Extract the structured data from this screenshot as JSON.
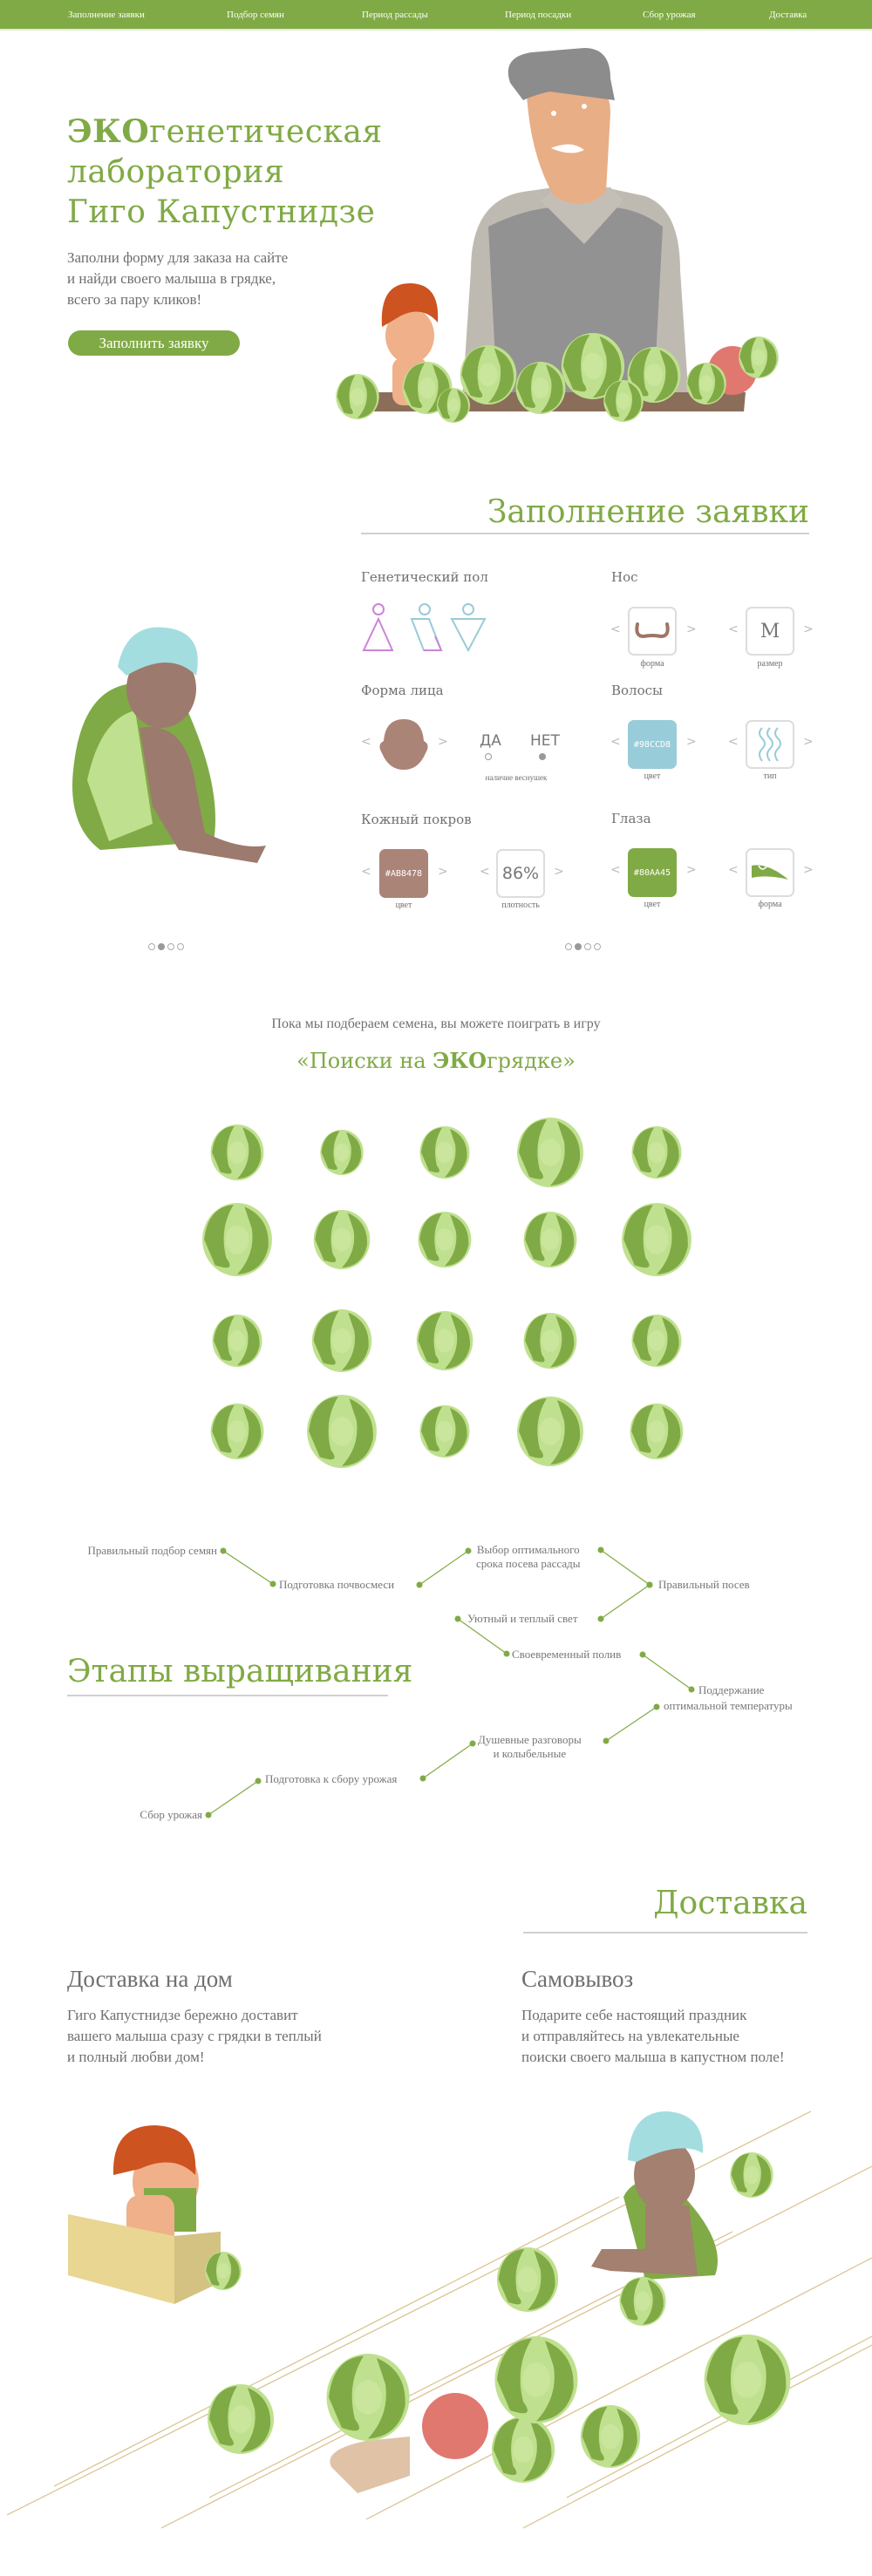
{
  "colors": {
    "brand": "#80AA45",
    "text": "#6f6f6f",
    "hair_color": "#98CCD8",
    "skin_color": "#AB8478",
    "eye_color": "#80AA45"
  },
  "nav": {
    "items": [
      {
        "label": "Заполнение заявки"
      },
      {
        "label": "Подбор семян"
      },
      {
        "label": "Период рассады"
      },
      {
        "label": "Период посадки"
      },
      {
        "label": "Сбор урожая"
      },
      {
        "label": "Доставка"
      }
    ]
  },
  "hero": {
    "title_bold": "ЭКО",
    "title_rest1": "генетическая",
    "title_line2": "лаборатория",
    "title_line3": "Гиго Капустнидзе",
    "subtitle": [
      "Заполни форму для заказа на сайте",
      "и найди своего малыша в грядке,",
      "всего за пару кликов!"
    ],
    "button": "Заполнить заявку"
  },
  "form": {
    "title": "Заполнение заявки",
    "gender": {
      "label": "Генетический пол",
      "icons": [
        "female-icon",
        "mixed-icon",
        "male-icon"
      ]
    },
    "nose": {
      "label": "Нос",
      "shape_caption": "форма",
      "size_value": "M",
      "size_caption": "размер"
    },
    "face": {
      "label": "Форма лица",
      "yes": "ДА",
      "no": "НЕТ",
      "freckles_caption": "наличие веснушек",
      "freckles_selected": "НЕТ"
    },
    "hair": {
      "label": "Волосы",
      "color_value": "#98CCD8",
      "color_caption": "цвет",
      "type_caption": "тип"
    },
    "skin": {
      "label": "Кожный покров",
      "color_value": "#AB8478",
      "color_caption": "цвет",
      "density_value": "86%",
      "density_caption": "плотность"
    },
    "eyes": {
      "label": "Глаза",
      "color_value": "#80AA45",
      "color_caption": "цвет",
      "shape_caption": "форма"
    },
    "carousel_left": {
      "pages": 4,
      "active": 2
    },
    "carousel_right": {
      "pages": 4,
      "active": 2
    }
  },
  "game": {
    "intro": "Пока мы подбераем семена, вы можете поиграть в игру",
    "title_open": "«Поиски на ",
    "title_bold": "ЭКО",
    "title_close": "грядке»",
    "rows": 4,
    "cols": 5
  },
  "stages": {
    "title": "Этапы выращивания",
    "items": [
      {
        "label": "Правильный подбор семян"
      },
      {
        "label": "Подготовка почвосмеси"
      },
      {
        "label": "Выбор оптимального",
        "label2": "срока посева рассады"
      },
      {
        "label": "Правильный посев"
      },
      {
        "label": "Уютный и теплый свет"
      },
      {
        "label": "Своевременный полив"
      },
      {
        "label": "Поддержание",
        "label2": "оптимальной температуры"
      },
      {
        "label": "Душевные разговоры",
        "label2": "и колыбельные"
      },
      {
        "label": "Подготовка к сбору урожая"
      },
      {
        "label": "Сбор урожая"
      }
    ]
  },
  "delivery": {
    "title": "Доставка",
    "home": {
      "title": "Доставка на дом",
      "text": [
        "Гиго Капустнидзе бережно доставит",
        "вашего малыша сразу с грядки в теплый",
        "и полный любви дом!"
      ]
    },
    "pickup": {
      "title": "Самовывоз",
      "text": [
        "Подарите себе настоящий праздник",
        "и отправляйтесь на увлекательные",
        "поиски своего малыша в капустном поле!"
      ]
    }
  }
}
